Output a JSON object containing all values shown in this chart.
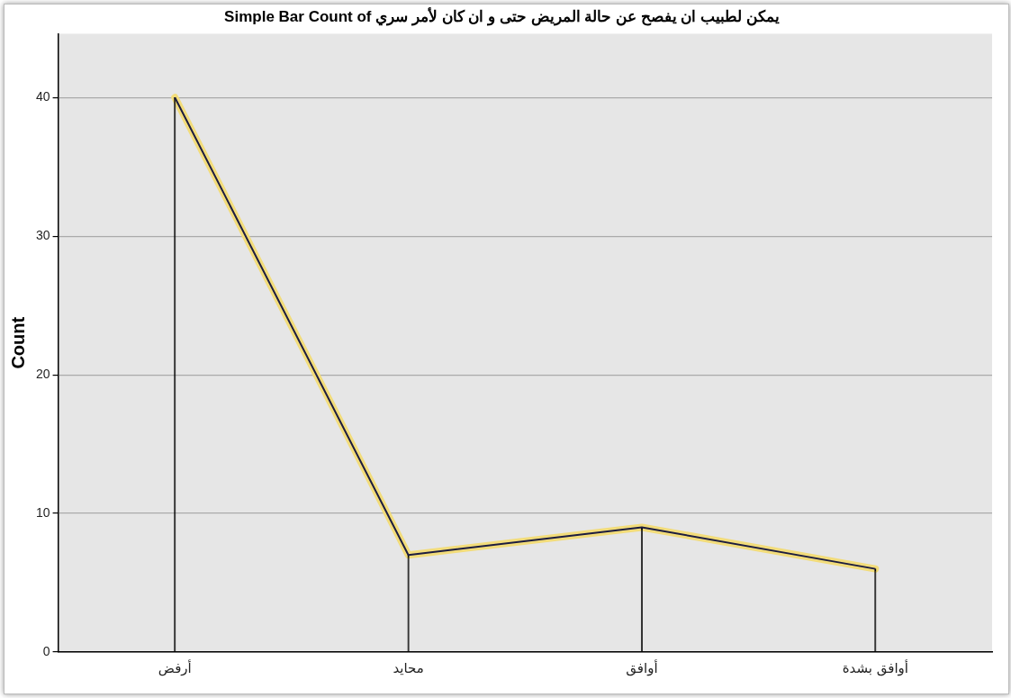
{
  "chart_data": {
    "type": "line",
    "title": "Simple Bar Count of يمكن لطبيب ان يفصح عن حالة المريض حتى و ان كان لأمر سري",
    "ylabel": "Count",
    "categories": [
      "أرفض",
      "محايد",
      "أوافق",
      "أوافق بشدة"
    ],
    "series": [
      {
        "type": "bar",
        "color": "#000000",
        "values": [
          40,
          7,
          9,
          6
        ]
      },
      {
        "color": "#1c1c40",
        "values": [
          40,
          7,
          9,
          6
        ]
      }
    ],
    "marker": "none",
    "ylim": [
      0,
      44.6
    ],
    "yticks": [
      0,
      10,
      20,
      30,
      40
    ],
    "grid": "y",
    "legend": false
  }
}
